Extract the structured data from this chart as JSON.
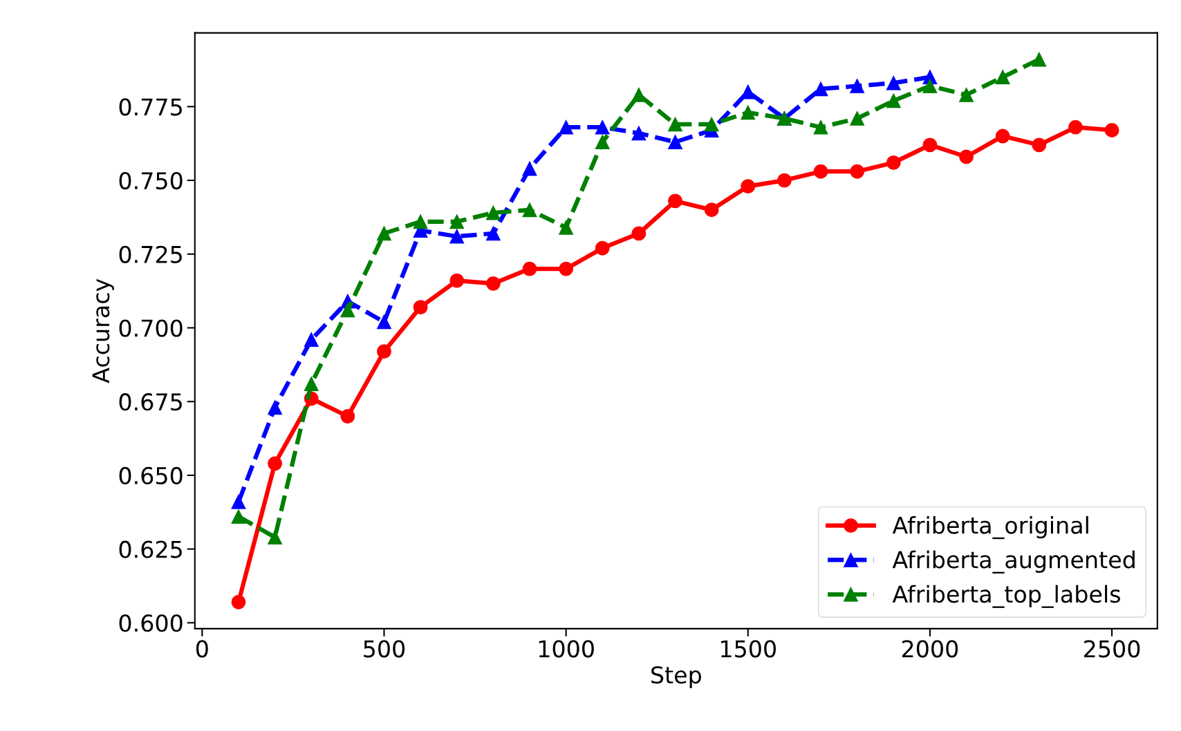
{
  "chart_data": {
    "type": "line",
    "xlabel": "Step",
    "ylabel": "Accuracy",
    "x": [
      100,
      200,
      300,
      400,
      500,
      600,
      700,
      800,
      900,
      1000,
      1100,
      1200,
      1300,
      1400,
      1500,
      1600,
      1700,
      1800,
      1900,
      2000,
      2100,
      2200,
      2300,
      2400,
      2500
    ],
    "series": [
      {
        "name": "Afriberta_original",
        "color": "#ff0000",
        "marker": "circle",
        "line_style": "solid",
        "values": [
          0.607,
          0.654,
          0.676,
          0.67,
          0.692,
          0.707,
          0.716,
          0.715,
          0.72,
          0.72,
          0.727,
          0.732,
          0.743,
          0.74,
          0.748,
          0.75,
          0.753,
          0.753,
          0.756,
          0.762,
          0.758,
          0.765,
          0.762,
          0.768,
          0.767
        ]
      },
      {
        "name": "Afriberta_augmented",
        "color": "#0000ff",
        "marker": "triangle",
        "line_style": "dashed",
        "values": [
          0.641,
          0.673,
          0.696,
          0.709,
          0.702,
          0.733,
          0.731,
          0.732,
          0.754,
          0.768,
          0.768,
          0.766,
          0.763,
          0.767,
          0.78,
          0.771,
          0.781,
          0.782,
          0.783,
          0.785,
          null,
          null,
          null,
          null,
          null
        ]
      },
      {
        "name": "Afriberta_top_labels",
        "color": "#008000",
        "marker": "triangle",
        "line_style": "dashed",
        "values": [
          0.636,
          0.629,
          0.681,
          0.706,
          0.732,
          0.736,
          0.736,
          0.739,
          0.74,
          0.734,
          0.763,
          0.779,
          0.769,
          0.769,
          0.773,
          0.771,
          0.768,
          0.771,
          0.777,
          0.782,
          0.779,
          0.785,
          0.791,
          null,
          null
        ]
      }
    ],
    "xlim": [
      -20,
      2625
    ],
    "ylim": [
      0.598,
      0.8
    ],
    "xticks": [
      0,
      500,
      1000,
      1500,
      2000,
      2500
    ],
    "yticks": [
      {
        "value": 0.6,
        "label": "0.600"
      },
      {
        "value": 0.625,
        "label": "0.625"
      },
      {
        "value": 0.65,
        "label": "0.650"
      },
      {
        "value": 0.675,
        "label": "0.675"
      },
      {
        "value": 0.7,
        "label": "0.700"
      },
      {
        "value": 0.725,
        "label": "0.725"
      },
      {
        "value": 0.75,
        "label": "0.750"
      },
      {
        "value": 0.775,
        "label": "0.775"
      }
    ],
    "grid": false,
    "legend": "bottom right"
  }
}
